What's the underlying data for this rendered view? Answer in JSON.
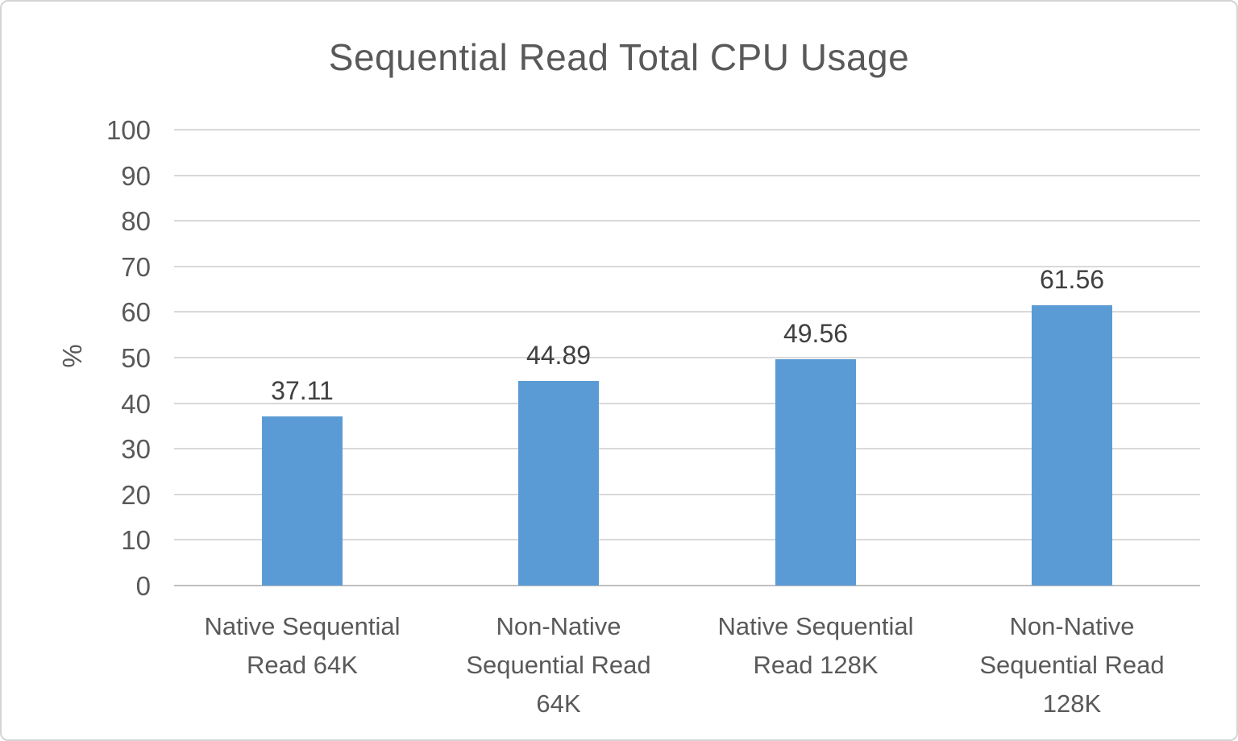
{
  "chart_data": {
    "type": "bar",
    "title": "Sequential Read Total CPU Usage",
    "xlabel": "",
    "ylabel": "%",
    "categories": [
      "Native Sequential Read 64K",
      "Non-Native Sequential Read 64K",
      "Native Sequential Read 128K",
      "Non-Native Sequential Read 128K"
    ],
    "values": [
      37.11,
      44.89,
      49.56,
      61.56
    ],
    "data_labels": [
      "37.11",
      "44.89",
      "49.56",
      "61.56"
    ],
    "ylim": [
      0,
      100
    ],
    "ytick_step": 10,
    "yticks": [
      0,
      10,
      20,
      30,
      40,
      50,
      60,
      70,
      80,
      90,
      100
    ],
    "grid": "horizontal-only",
    "legend_position": "none",
    "colors": {
      "bar": "#5B9BD5",
      "gridline": "#d9d9d9",
      "axis_line": "#bfbfbf",
      "title_text": "#595959",
      "tick_text": "#595959",
      "data_label_text": "#404040",
      "frame_border": "#d4d4d4",
      "background": "#ffffff"
    }
  }
}
